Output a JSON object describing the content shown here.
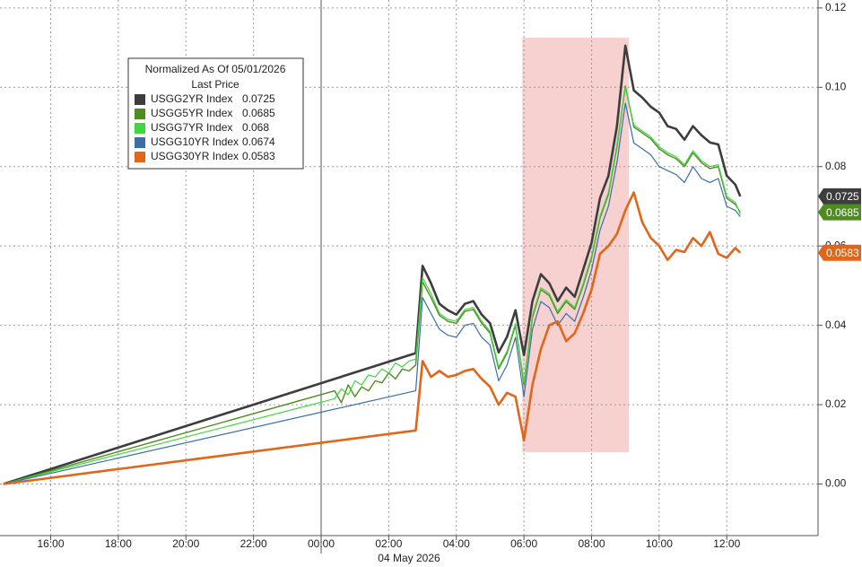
{
  "chart_data": {
    "type": "line",
    "legend": {
      "title": "Normalized As Of 05/01/2026",
      "subtitle": "Last Price"
    },
    "xlabel": "04 May 2026",
    "xlim": [
      14.5,
      38.7
    ],
    "ylim": [
      -0.013,
      0.122
    ],
    "xticks": [
      {
        "value": 16,
        "label": "16:00"
      },
      {
        "value": 18,
        "label": "18:00"
      },
      {
        "value": 20,
        "label": "20:00"
      },
      {
        "value": 22,
        "label": "22:00"
      },
      {
        "value": 24,
        "label": "00:00"
      },
      {
        "value": 26,
        "label": "02:00"
      },
      {
        "value": 28,
        "label": "04:00"
      },
      {
        "value": 30,
        "label": "06:00"
      },
      {
        "value": 32,
        "label": "08:00"
      },
      {
        "value": 34,
        "label": "10:00"
      },
      {
        "value": 36,
        "label": "12:00"
      }
    ],
    "yticks": [
      {
        "value": 0,
        "label": "0.00"
      },
      0.02,
      0.04,
      0.06,
      0.08,
      {
        "value": 0.1,
        "label": "0.10"
      },
      {
        "value": 0.12,
        "label": "0.12"
      }
    ],
    "grid": true,
    "day_divider": 24,
    "shaded_region": {
      "x": [
        29.95,
        33.1
      ],
      "y": [
        0.008,
        0.1125
      ],
      "color": "#f7d0d0"
    },
    "series": [
      {
        "name": "USGG2YR Index",
        "color": "#3d3d3d",
        "line_width": 2.6,
        "axis_tag": true,
        "x": [
          14.6,
          26.8,
          27.0,
          27.25,
          27.5,
          27.75,
          28.0,
          28.25,
          28.5,
          28.75,
          29.0,
          29.25,
          29.5,
          29.75,
          30.0,
          30.25,
          30.5,
          30.75,
          31.0,
          31.25,
          31.5,
          31.75,
          32.0,
          32.25,
          32.5,
          32.75,
          33.0,
          33.25,
          33.5,
          33.75,
          34.0,
          34.25,
          34.5,
          34.75,
          35.0,
          35.25,
          35.5,
          35.75,
          36.0,
          36.25,
          36.4
        ],
        "values": [
          0,
          0.033,
          0.055,
          0.0506,
          0.0454,
          0.0438,
          0.0427,
          0.0454,
          0.0461,
          0.0427,
          0.0405,
          0.0332,
          0.0371,
          0.0438,
          0.0325,
          0.0461,
          0.0529,
          0.0506,
          0.0461,
          0.0495,
          0.0472,
          0.054,
          0.0608,
          0.0721,
          0.0777,
          0.0902,
          0.1105,
          0.0992,
          0.0974,
          0.0951,
          0.0936,
          0.0902,
          0.0895,
          0.0868,
          0.0902,
          0.0879,
          0.0861,
          0.0856,
          0.0777,
          0.0755,
          0.0725
        ]
      },
      {
        "name": "USGG5YR Index",
        "color": "#4f8c1f",
        "line_width": 1.4,
        "axis_tag": true,
        "x": [
          14.6,
          24.4,
          24.6,
          24.8,
          25.0,
          25.2,
          25.4,
          25.6,
          25.8,
          26.0,
          26.2,
          26.4,
          26.6,
          26.8,
          27.0,
          27.25,
          27.5,
          27.75,
          28.0,
          28.25,
          28.5,
          28.75,
          29.0,
          29.25,
          29.5,
          29.75,
          30.0,
          30.25,
          30.5,
          30.75,
          31.0,
          31.25,
          31.5,
          31.75,
          32.0,
          32.25,
          32.5,
          32.75,
          33.0,
          33.25,
          33.5,
          33.75,
          34.0,
          34.25,
          34.5,
          34.75,
          35.0,
          35.25,
          35.5,
          35.75,
          36.0,
          36.25,
          36.4
        ],
        "values": [
          0,
          0.0235,
          0.0205,
          0.025,
          0.022,
          0.0245,
          0.0235,
          0.026,
          0.0255,
          0.028,
          0.0265,
          0.029,
          0.0285,
          0.03,
          0.051,
          0.047,
          0.0425,
          0.041,
          0.0405,
          0.0435,
          0.044,
          0.0405,
          0.038,
          0.029,
          0.033,
          0.04,
          0.025,
          0.042,
          0.049,
          0.0475,
          0.043,
          0.046,
          0.044,
          0.05,
          0.057,
          0.067,
          0.073,
          0.085,
          0.1003,
          0.09,
          0.0885,
          0.087,
          0.0845,
          0.083,
          0.082,
          0.08,
          0.0835,
          0.081,
          0.0795,
          0.08,
          0.072,
          0.0705,
          0.0685
        ]
      },
      {
        "name": "USGG7YR Index",
        "color": "#3fd63f",
        "line_width": 1.2,
        "axis_tag": false,
        "x": [
          14.6,
          24.4,
          24.6,
          24.8,
          25.0,
          25.2,
          25.4,
          25.6,
          25.8,
          26.0,
          26.2,
          26.4,
          26.6,
          26.8,
          27.0,
          27.25,
          27.5,
          27.75,
          28.0,
          28.25,
          28.5,
          28.75,
          29.0,
          29.25,
          29.5,
          29.75,
          30.0,
          30.25,
          30.5,
          30.75,
          31.0,
          31.25,
          31.5,
          31.75,
          32.0,
          32.25,
          32.5,
          32.75,
          33.0,
          33.25,
          33.5,
          33.75,
          34.0,
          34.25,
          34.5,
          34.75,
          35.0,
          35.25,
          35.5,
          35.75,
          36.0,
          36.25,
          36.4
        ],
        "values": [
          0,
          0.0215,
          0.024,
          0.0225,
          0.026,
          0.025,
          0.0275,
          0.027,
          0.029,
          0.028,
          0.0305,
          0.0295,
          0.031,
          0.0315,
          0.052,
          0.048,
          0.043,
          0.0415,
          0.041,
          0.044,
          0.0445,
          0.041,
          0.0385,
          0.0295,
          0.0335,
          0.0405,
          0.0255,
          0.0425,
          0.0495,
          0.048,
          0.0435,
          0.0465,
          0.0445,
          0.0505,
          0.0575,
          0.0675,
          0.0735,
          0.0855,
          0.1,
          0.0905,
          0.089,
          0.0875,
          0.085,
          0.0835,
          0.0825,
          0.0805,
          0.084,
          0.0815,
          0.08,
          0.0805,
          0.0725,
          0.071,
          0.068
        ]
      },
      {
        "name": "USGG10YR Index",
        "color": "#3a6ea5",
        "line_width": 1.2,
        "axis_tag": false,
        "x": [
          14.6,
          26.8,
          27.0,
          27.25,
          27.5,
          27.75,
          28.0,
          28.25,
          28.5,
          28.75,
          29.0,
          29.25,
          29.5,
          29.75,
          30.0,
          30.25,
          30.5,
          30.75,
          31.0,
          31.25,
          31.5,
          31.75,
          32.0,
          32.25,
          32.5,
          32.75,
          33.0,
          33.25,
          33.5,
          33.75,
          34.0,
          34.25,
          34.5,
          34.75,
          35.0,
          35.25,
          35.5,
          35.75,
          36.0,
          36.25,
          36.4
        ],
        "values": [
          0,
          0.0235,
          0.047,
          0.043,
          0.039,
          0.0375,
          0.037,
          0.04,
          0.0405,
          0.037,
          0.035,
          0.026,
          0.03,
          0.037,
          0.022,
          0.039,
          0.046,
          0.0445,
          0.04,
          0.043,
          0.041,
          0.047,
          0.054,
          0.064,
          0.07,
          0.081,
          0.096,
          0.086,
          0.0845,
          0.083,
          0.08,
          0.079,
          0.078,
          0.076,
          0.08,
          0.077,
          0.076,
          0.077,
          0.07,
          0.069,
          0.0674
        ]
      },
      {
        "name": "USGG30YR Index",
        "color": "#e0661a",
        "line_width": 2.6,
        "axis_tag": true,
        "x": [
          14.6,
          26.8,
          27.0,
          27.25,
          27.5,
          27.75,
          28.0,
          28.25,
          28.5,
          28.75,
          29.0,
          29.25,
          29.5,
          29.75,
          30.0,
          30.25,
          30.5,
          30.75,
          31.0,
          31.25,
          31.5,
          31.75,
          32.0,
          32.25,
          32.5,
          32.75,
          33.0,
          33.25,
          33.5,
          33.75,
          34.0,
          34.25,
          34.5,
          34.75,
          35.0,
          35.25,
          35.5,
          35.75,
          36.0,
          36.25,
          36.4
        ],
        "values": [
          0,
          0.0135,
          0.031,
          0.027,
          0.0285,
          0.027,
          0.0275,
          0.0285,
          0.029,
          0.0265,
          0.0245,
          0.02,
          0.023,
          0.022,
          0.011,
          0.025,
          0.034,
          0.04,
          0.041,
          0.036,
          0.038,
          0.043,
          0.049,
          0.058,
          0.06,
          0.063,
          0.069,
          0.0735,
          0.066,
          0.062,
          0.06,
          0.0565,
          0.059,
          0.0585,
          0.062,
          0.06,
          0.0635,
          0.058,
          0.057,
          0.0595,
          0.0583
        ]
      }
    ]
  }
}
